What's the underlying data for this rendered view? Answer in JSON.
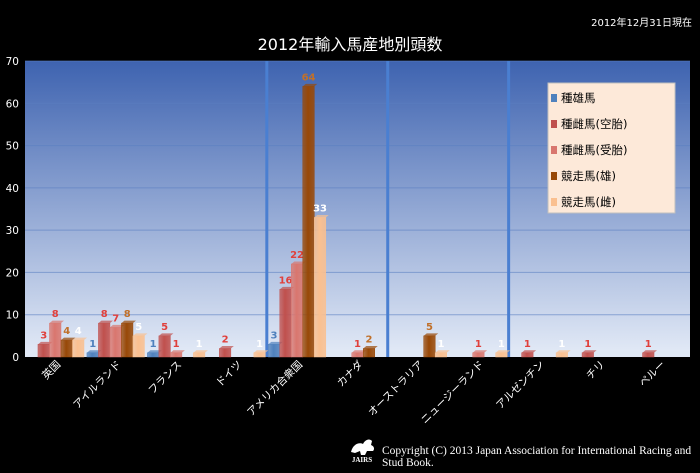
{
  "date_note": "2012年12月31日現在",
  "copyright": "Copyright (C) 2013 Japan Association for International Racing and Stud Book.",
  "logo_text": "JAIRS",
  "colors": {
    "plot_top": "#3e63b0",
    "plot_bottom": "#e4ebf7",
    "separator": "#4a7fd1",
    "grid": "#5b7fc2",
    "legend_bg": "#fde9d9"
  },
  "chart_data": {
    "type": "bar",
    "title": "2012年輸入馬産地別頭数",
    "xlabel": "",
    "ylabel": "",
    "ylim": [
      0,
      70
    ],
    "yticks": [
      0,
      10,
      20,
      30,
      40,
      50,
      60,
      70
    ],
    "grid": true,
    "legend_position": "right",
    "categories": [
      "英国",
      "アイルランド",
      "フランス",
      "ドイツ",
      "アメリカ合衆国",
      "カナダ",
      "オーストラリア",
      "ニュージーランド",
      "アルゼンチン",
      "チリ",
      "ペルー"
    ],
    "series": [
      {
        "name": "種雄馬",
        "color": "#4f81bd",
        "label_color": "#4f81bd",
        "values": [
          0,
          1,
          1,
          0,
          3,
          0,
          0,
          0,
          0,
          0,
          0
        ]
      },
      {
        "name": "種雌馬(空胎)",
        "color": "#c0504d",
        "label_color": "#e0403c",
        "values": [
          3,
          8,
          5,
          2,
          16,
          0,
          0,
          0,
          1,
          1,
          1
        ]
      },
      {
        "name": "種雌馬(受胎)",
        "color": "#d9766e",
        "label_color": "#e0403c",
        "values": [
          8,
          7,
          1,
          0,
          22,
          1,
          0,
          1,
          0,
          0,
          0
        ]
      },
      {
        "name": "競走馬(雄)",
        "color": "#984807",
        "label_color": "#c0702a",
        "values": [
          4,
          8,
          0,
          0,
          64,
          2,
          5,
          0,
          0,
          0,
          0
        ]
      },
      {
        "name": "競走馬(雌)",
        "color": "#fac090",
        "label_color": "#ffffff",
        "values": [
          4,
          5,
          1,
          1,
          33,
          0,
          1,
          1,
          1,
          0,
          0
        ]
      }
    ]
  }
}
